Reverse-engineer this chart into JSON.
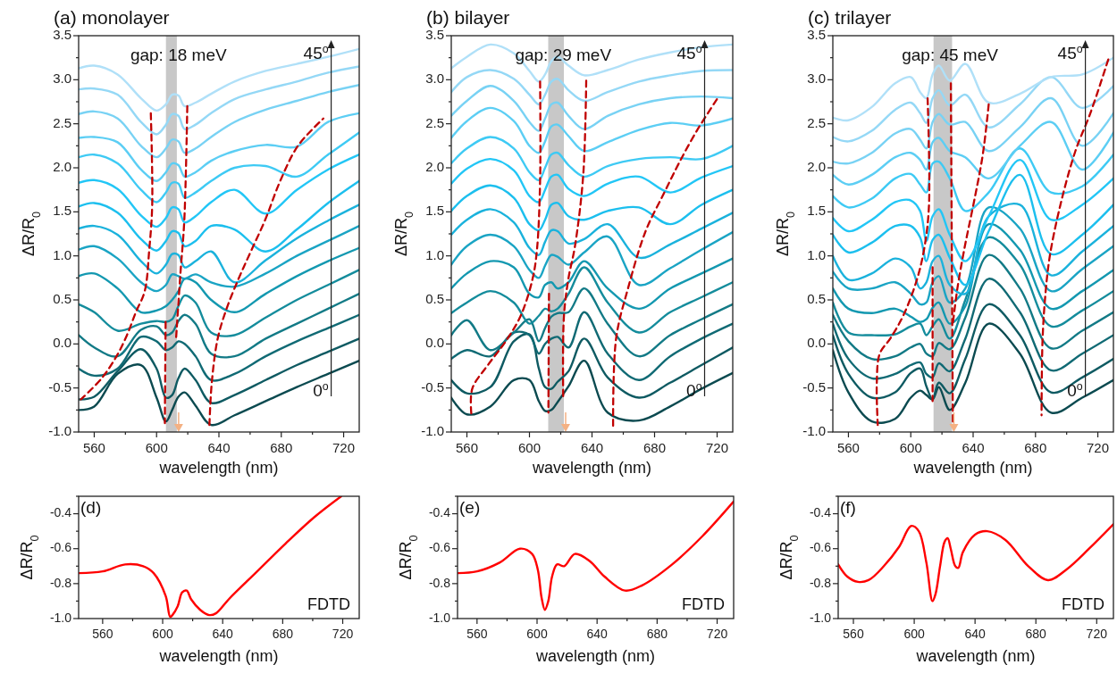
{
  "chart_data": [
    {
      "type": "line",
      "title": "(a) monolayer",
      "xlabel": "wavelength (nm)",
      "ylabel": "ΔR/R$_{0}$",
      "xlim": [
        550,
        730
      ],
      "ylim": [
        -1,
        3.5
      ],
      "line_style": "solid",
      "xticks": [
        560,
        {
          "value": 580,
          "label": null
        },
        600,
        {
          "value": 620,
          "label": null
        },
        640,
        {
          "value": 660,
          "label": null
        },
        680,
        {
          "value": 700,
          "label": null
        },
        720
      ],
      "yticks": [
        {
          "value": -1,
          "label": "-1.0"
        },
        {
          "value": -0.75,
          "label": null
        },
        {
          "value": -0.5,
          "label": "-0.5"
        },
        {
          "value": -0.25,
          "label": null
        },
        {
          "value": 0,
          "label": "0.0"
        },
        {
          "value": 0.25,
          "label": null
        },
        {
          "value": 0.5,
          "label": "0.5"
        },
        {
          "value": 0.75,
          "label": null
        },
        {
          "value": 1,
          "label": "1.0"
        },
        {
          "value": 1.25,
          "label": null
        },
        {
          "value": 1.5,
          "label": "1.5"
        },
        {
          "value": 1.75,
          "label": null
        },
        {
          "value": 2,
          "label": "2.0"
        },
        {
          "value": 2.25,
          "label": null
        },
        {
          "value": 2.5,
          "label": "2.5"
        },
        {
          "value": 2.75,
          "label": null
        },
        {
          "value": 3,
          "label": "3.0"
        },
        {
          "value": 3.25,
          "label": null
        },
        {
          "value": 3.5,
          "label": "3.5"
        }
      ],
      "x": [
        550,
        560,
        575,
        590,
        600,
        606,
        610,
        614,
        618,
        625,
        635,
        650,
        670,
        690,
        710,
        730
      ],
      "bands": [
        {
          "axis": "x",
          "from": 606,
          "to": 613,
          "color": "#c8c8c8"
        }
      ],
      "annotations": [
        "gap: 18 meV",
        "45$^{o}$",
        "0$^{o}$"
      ],
      "series": [
        {
          "color": "#0b4a50",
          "values": [
            -0.75,
            -0.71,
            -0.34,
            -0.24,
            -0.61,
            -0.88,
            -0.75,
            -0.6,
            -0.55,
            -0.7,
            -0.92,
            -0.81,
            -0.65,
            -0.49,
            -0.34,
            -0.19
          ]
        },
        {
          "color": "#0e5a62",
          "values": [
            -0.63,
            -0.6,
            -0.31,
            -0.06,
            -0.28,
            -0.61,
            -0.58,
            -0.39,
            -0.28,
            -0.41,
            -0.67,
            -0.58,
            -0.41,
            -0.24,
            -0.09,
            0.06
          ]
        },
        {
          "color": "#106a74",
          "values": [
            -0.28,
            -0.36,
            -0.28,
            0.08,
            0.03,
            -0.07,
            -0.04,
            0.03,
            0.0,
            -0.14,
            -0.41,
            -0.34,
            -0.14,
            0.03,
            0.18,
            0.33
          ]
        },
        {
          "color": "#127a86",
          "values": [
            0.1,
            -0.04,
            -0.14,
            0.16,
            0.2,
            0.1,
            0.13,
            0.26,
            0.33,
            0.23,
            -0.11,
            -0.14,
            0.06,
            0.23,
            0.4,
            0.57
          ]
        },
        {
          "color": "#148c9c",
          "values": [
            0.45,
            0.36,
            0.15,
            0.23,
            0.26,
            0.25,
            0.28,
            0.43,
            0.55,
            0.47,
            0.13,
            0.1,
            0.3,
            0.5,
            0.67,
            0.84
          ]
        },
        {
          "color": "#1398b0",
          "values": [
            0.77,
            0.8,
            0.63,
            0.36,
            0.38,
            0.43,
            0.5,
            0.6,
            0.74,
            0.7,
            0.5,
            0.36,
            0.57,
            0.77,
            0.94,
            1.09
          ]
        },
        {
          "color": "#1aa4c4",
          "values": [
            1.07,
            1.11,
            0.97,
            0.7,
            0.6,
            0.67,
            0.79,
            0.77,
            0.74,
            0.79,
            0.7,
            0.65,
            0.8,
            1.0,
            1.17,
            1.34
          ]
        },
        {
          "color": "#1ab2dc",
          "values": [
            1.31,
            1.34,
            1.24,
            0.94,
            0.8,
            0.9,
            1.02,
            1.01,
            0.87,
            0.94,
            1.05,
            0.7,
            0.95,
            1.2,
            1.4,
            1.58
          ]
        },
        {
          "color": "#1cbfee",
          "values": [
            1.56,
            1.6,
            1.49,
            1.19,
            1.06,
            1.17,
            1.28,
            1.26,
            1.11,
            1.17,
            1.34,
            1.3,
            1.05,
            1.3,
            1.6,
            1.85
          ]
        },
        {
          "color": "#22c6f6",
          "values": [
            1.83,
            1.86,
            1.76,
            1.46,
            1.33,
            1.43,
            1.55,
            1.53,
            1.38,
            1.45,
            1.61,
            1.75,
            1.48,
            1.75,
            1.98,
            2.15
          ]
        },
        {
          "color": "#3ecaf4",
          "values": [
            2.12,
            2.15,
            2.05,
            1.75,
            1.61,
            1.72,
            1.83,
            1.82,
            1.66,
            1.72,
            1.85,
            2.0,
            2.02,
            1.9,
            2.15,
            2.4
          ]
        },
        {
          "color": "#5ccef4",
          "values": [
            2.34,
            2.35,
            2.29,
            1.98,
            1.85,
            1.95,
            2.05,
            2.03,
            1.9,
            1.95,
            2.08,
            2.19,
            2.26,
            2.24,
            2.52,
            2.62
          ]
        },
        {
          "color": "#78d2f4",
          "values": [
            2.61,
            2.64,
            2.56,
            2.25,
            2.12,
            2.22,
            2.32,
            2.3,
            2.17,
            2.22,
            2.35,
            2.52,
            2.66,
            2.76,
            2.86,
            2.94
          ]
        },
        {
          "color": "#94d8f6",
          "values": [
            2.89,
            2.9,
            2.83,
            2.52,
            2.38,
            2.49,
            2.61,
            2.59,
            2.44,
            2.49,
            2.62,
            2.78,
            2.89,
            2.98,
            3.08,
            3.15
          ]
        },
        {
          "color": "#b0e0f8",
          "values": [
            3.13,
            3.16,
            3.06,
            2.79,
            2.65,
            2.72,
            2.83,
            2.82,
            2.7,
            2.74,
            2.84,
            2.98,
            3.1,
            3.18,
            3.26,
            3.35
          ]
        },
        {
          "type": "line",
          "color": "#c00000",
          "line_style": "dashed",
          "x": [
            596.3,
            597.2,
            595.3,
            592.4,
            586.7,
            581.0,
            574.3,
            564.8,
            551.4
          ],
          "values": [
            2.62,
            1.58,
            1.07,
            0.6,
            0.36,
            0.1,
            -0.14,
            -0.39,
            -0.63
          ]
        },
        {
          "type": "line",
          "color": "#c00000",
          "line_style": "dashed",
          "x": [
            605.8,
            605.3
          ],
          "values": [
            0.25,
            -0.9
          ]
        },
        {
          "type": "line",
          "color": "#c00000",
          "line_style": "dashed",
          "x": [
            619.7,
            617.8,
            615.3,
            612.5
          ],
          "values": [
            2.7,
            1.41,
            0.8,
            0.06
          ]
        },
        {
          "type": "line",
          "color": "#c00000",
          "line_style": "dashed",
          "x": [
            633.9,
            635.4,
            639.2,
            644.9,
            652.6,
            660.2,
            669.7,
            679.3,
            690.7,
            707.0
          ],
          "values": [
            -0.92,
            -0.44,
            0.06,
            0.4,
            0.74,
            1.04,
            1.41,
            1.85,
            2.25,
            2.56
          ]
        }
      ]
    },
    {
      "type": "line",
      "title": "(b) bilayer",
      "xlabel": "wavelength (nm)",
      "ylabel": "ΔR/R$_{0}$",
      "xlim": [
        550,
        730
      ],
      "ylim": [
        -1,
        3.5
      ],
      "line_style": "solid",
      "xticks": [
        560,
        {
          "value": 580,
          "label": null
        },
        600,
        {
          "value": 620,
          "label": null
        },
        640,
        {
          "value": 660,
          "label": null
        },
        680,
        {
          "value": 700,
          "label": null
        },
        720
      ],
      "yticks": [
        {
          "value": -1,
          "label": "-1.0"
        },
        {
          "value": -0.75,
          "label": null
        },
        {
          "value": -0.5,
          "label": "-0.5"
        },
        {
          "value": -0.25,
          "label": null
        },
        {
          "value": 0,
          "label": "0.0"
        },
        {
          "value": 0.25,
          "label": null
        },
        {
          "value": 0.5,
          "label": "0.5"
        },
        {
          "value": 0.75,
          "label": null
        },
        {
          "value": 1,
          "label": "1.0"
        },
        {
          "value": 1.25,
          "label": null
        },
        {
          "value": 1.5,
          "label": "1.5"
        },
        {
          "value": 1.75,
          "label": null
        },
        {
          "value": 2,
          "label": "2.0"
        },
        {
          "value": 2.25,
          "label": null
        },
        {
          "value": 2.5,
          "label": "2.5"
        },
        {
          "value": 2.75,
          "label": null
        },
        {
          "value": 3,
          "label": "3.0"
        },
        {
          "value": 3.25,
          "label": null
        },
        {
          "value": 3.5,
          "label": "3.5"
        }
      ],
      "x": [
        550,
        560,
        575,
        590,
        600,
        606,
        610,
        614,
        618,
        625,
        635,
        650,
        670,
        690,
        710,
        730
      ],
      "bands": [
        {
          "axis": "x",
          "from": 612,
          "to": 622,
          "color": "#c8c8c8"
        }
      ],
      "annotations": [
        "gap: 29 meV",
        "45$^{o}$",
        "0$^{o}$"
      ],
      "series": [
        {
          "color": "#0b4a50",
          "values": [
            -0.61,
            -0.8,
            -0.71,
            -0.41,
            -0.41,
            -0.65,
            -0.76,
            -0.75,
            -0.66,
            -0.48,
            -0.19,
            -0.78,
            -0.87,
            -0.71,
            -0.51,
            -0.33
          ]
        },
        {
          "color": "#0e5a62",
          "values": [
            -0.41,
            -0.56,
            -0.49,
            0.03,
            0.11,
            -0.28,
            -0.49,
            -0.51,
            -0.43,
            -0.31,
            0.06,
            -0.38,
            -0.61,
            -0.44,
            -0.24,
            -0.04
          ]
        },
        {
          "color": "#106a74",
          "values": [
            -0.17,
            -0.07,
            -0.14,
            0.13,
            0.1,
            -0.11,
            0.0,
            0.06,
            0.08,
            -0.04,
            0.36,
            -0.11,
            -0.41,
            -0.14,
            0.06,
            0.23
          ]
        },
        {
          "color": "#127a86",
          "values": [
            0.1,
            0.27,
            -0.07,
            0.13,
            0.28,
            0.03,
            0.18,
            0.31,
            0.35,
            0.36,
            0.63,
            0.23,
            -0.14,
            0.1,
            0.28,
            0.45
          ]
        },
        {
          "color": "#148c9c",
          "values": [
            0.35,
            0.47,
            0.6,
            0.47,
            0.23,
            0.32,
            0.4,
            0.37,
            0.4,
            0.57,
            0.87,
            0.47,
            0.13,
            0.36,
            0.53,
            0.7
          ]
        },
        {
          "color": "#1398b0",
          "values": [
            0.63,
            0.8,
            0.94,
            0.87,
            0.57,
            0.53,
            0.67,
            0.7,
            0.63,
            0.7,
            0.94,
            0.63,
            0.4,
            0.63,
            0.8,
            0.97
          ]
        },
        {
          "color": "#1aa4c4",
          "values": [
            0.9,
            1.11,
            1.24,
            1.11,
            0.84,
            0.75,
            0.89,
            1.01,
            0.99,
            0.9,
            1.04,
            1.22,
            0.67,
            0.86,
            1.07,
            1.27
          ]
        },
        {
          "color": "#1ab2dc",
          "values": [
            1.24,
            1.41,
            1.53,
            1.38,
            1.09,
            1.01,
            1.16,
            1.29,
            1.28,
            1.14,
            1.19,
            1.36,
            0.98,
            1.13,
            1.31,
            1.49
          ]
        },
        {
          "color": "#1cbfee",
          "values": [
            1.51,
            1.68,
            1.8,
            1.66,
            1.36,
            1.29,
            1.41,
            1.58,
            1.6,
            1.45,
            1.41,
            1.51,
            1.55,
            1.36,
            1.58,
            1.75
          ]
        },
        {
          "color": "#22c6f6",
          "values": [
            1.82,
            1.99,
            2.1,
            1.97,
            1.68,
            1.61,
            1.75,
            1.9,
            1.92,
            1.76,
            1.68,
            1.82,
            1.9,
            1.72,
            1.89,
            2.02
          ]
        },
        {
          "color": "#3ecaf4",
          "values": [
            2.05,
            2.22,
            2.35,
            2.22,
            1.95,
            1.86,
            2.0,
            2.15,
            2.17,
            2.03,
            1.9,
            2.02,
            2.1,
            2.12,
            2.1,
            2.25
          ]
        },
        {
          "color": "#5ccef4",
          "values": [
            2.34,
            2.53,
            2.68,
            2.53,
            2.25,
            2.17,
            2.3,
            2.47,
            2.49,
            2.36,
            2.19,
            2.29,
            2.43,
            2.51,
            2.48,
            2.56
          ]
        },
        {
          "color": "#78d2f4",
          "values": [
            2.59,
            2.76,
            2.93,
            2.76,
            2.52,
            2.42,
            2.56,
            2.72,
            2.74,
            2.59,
            2.44,
            2.59,
            2.72,
            2.79,
            2.81,
            2.79
          ]
        },
        {
          "color": "#94d8f6",
          "values": [
            2.86,
            3.03,
            3.11,
            3.01,
            2.83,
            2.72,
            2.83,
            2.98,
            3.01,
            2.88,
            2.76,
            2.86,
            2.98,
            3.05,
            3.1,
            3.11
          ]
        },
        {
          "color": "#b0e0f8",
          "values": [
            3.13,
            3.26,
            3.4,
            3.3,
            3.1,
            2.98,
            3.06,
            3.21,
            3.26,
            3.16,
            3.05,
            3.11,
            3.23,
            3.31,
            3.37,
            3.4
          ]
        },
        {
          "type": "line",
          "color": "#c00000",
          "line_style": "dashed",
          "x": [
            606.8,
            606.8,
            604.8,
            602.0,
            594.4,
            584.8,
            573.4,
            563.4,
            562.9
          ],
          "values": [
            2.98,
            1.85,
            1.07,
            0.74,
            0.32,
            0.03,
            -0.24,
            -0.51,
            -0.81
          ]
        },
        {
          "type": "line",
          "color": "#c00000",
          "line_style": "dashed",
          "x": [
            612.5,
            612.1
          ],
          "values": [
            0.57,
            -0.78
          ]
        },
        {
          "type": "line",
          "color": "#c00000",
          "line_style": "dashed",
          "x": [
            636.3,
            634.4,
            629.1,
            624.9,
            622.0,
            621.6
          ],
          "values": [
            2.99,
            1.92,
            1.11,
            0.74,
            0.3,
            -0.63
          ]
        },
        {
          "type": "line",
          "color": "#c00000",
          "line_style": "dashed",
          "x": [
            653.5,
            655.4,
            663.0,
            674.5,
            686.0,
            695.5,
            707.0,
            720.3
          ],
          "values": [
            -0.93,
            0.06,
            0.63,
            1.29,
            1.71,
            2.05,
            2.42,
            2.79
          ]
        }
      ]
    },
    {
      "type": "line",
      "title": "(c) trilayer",
      "xlabel": "wavelength (nm)",
      "ylabel": "ΔR/R$_{0}$",
      "xlim": [
        550,
        730
      ],
      "ylim": [
        -1,
        3.5
      ],
      "line_style": "solid",
      "xticks": [
        560,
        {
          "value": 580,
          "label": null
        },
        600,
        {
          "value": 620,
          "label": null
        },
        640,
        {
          "value": 660,
          "label": null
        },
        680,
        {
          "value": 700,
          "label": null
        },
        720
      ],
      "yticks": [
        {
          "value": -1,
          "label": "-1.0"
        },
        {
          "value": -0.75,
          "label": null
        },
        {
          "value": -0.5,
          "label": "-0.5"
        },
        {
          "value": -0.25,
          "label": null
        },
        {
          "value": 0,
          "label": "0.0"
        },
        {
          "value": 0.25,
          "label": null
        },
        {
          "value": 0.5,
          "label": "0.5"
        },
        {
          "value": 0.75,
          "label": null
        },
        {
          "value": 1,
          "label": "1.0"
        },
        {
          "value": 1.25,
          "label": null
        },
        {
          "value": 1.5,
          "label": "1.5"
        },
        {
          "value": 1.75,
          "label": null
        },
        {
          "value": 2,
          "label": "2.0"
        },
        {
          "value": 2.25,
          "label": null
        },
        {
          "value": 2.5,
          "label": "2.5"
        },
        {
          "value": 2.75,
          "label": null
        },
        {
          "value": 3,
          "label": "3.0"
        },
        {
          "value": 3.25,
          "label": null
        },
        {
          "value": 3.5,
          "label": "3.5"
        }
      ],
      "x": [
        550,
        560,
        575,
        590,
        600,
        606,
        610,
        614,
        618,
        625,
        635,
        650,
        670,
        690,
        710,
        730
      ],
      "bands": [
        {
          "axis": "x",
          "from": 614.6,
          "to": 626.5,
          "color": "#c8c8c8"
        }
      ],
      "annotations": [
        "gap: 45 meV",
        "45$^{o}$",
        "0$^{o}$"
      ],
      "series": [
        {
          "color": "#0b4a50",
          "values": [
            -0.07,
            -0.55,
            -0.88,
            -0.85,
            -0.61,
            -0.53,
            -0.58,
            -0.63,
            -0.49,
            -0.75,
            -0.44,
            0.23,
            -0.11,
            -0.78,
            -0.61,
            -0.41
          ]
        },
        {
          "color": "#0e5a62",
          "values": [
            0.1,
            -0.34,
            -0.61,
            -0.55,
            -0.33,
            -0.28,
            -0.48,
            -0.63,
            -0.44,
            -0.56,
            -0.17,
            0.45,
            0.1,
            -0.55,
            -0.38,
            -0.17
          ]
        },
        {
          "color": "#106a74",
          "values": [
            0.23,
            -0.17,
            -0.39,
            -0.34,
            -0.24,
            -0.21,
            -0.34,
            -0.38,
            -0.22,
            -0.31,
            0.06,
            0.74,
            0.36,
            -0.3,
            -0.11,
            0.1
          ]
        },
        {
          "color": "#127a86",
          "values": [
            0.33,
            0.03,
            -0.17,
            -0.14,
            -0.04,
            0.0,
            -0.11,
            -0.14,
            0.01,
            -0.06,
            0.3,
            1.01,
            0.63,
            -0.05,
            0.15,
            0.36
          ]
        },
        {
          "color": "#148c9c",
          "values": [
            0.47,
            0.13,
            0.1,
            0.11,
            0.2,
            0.23,
            0.1,
            0.2,
            0.28,
            0.06,
            0.5,
            1.21,
            0.9,
            0.2,
            0.38,
            0.6
          ]
        },
        {
          "color": "#1398b0",
          "values": [
            0.63,
            0.4,
            0.35,
            0.4,
            0.31,
            0.25,
            0.28,
            0.41,
            0.47,
            0.23,
            0.43,
            1.36,
            1.07,
            0.4,
            0.6,
            0.84
          ]
        },
        {
          "color": "#1aa4c4",
          "values": [
            0.82,
            0.63,
            0.63,
            0.7,
            0.57,
            0.45,
            0.47,
            0.7,
            0.77,
            0.47,
            0.63,
            1.55,
            1.31,
            0.6,
            0.85,
            1.11
          ]
        },
        {
          "color": "#1ab2dc",
          "values": [
            1.0,
            0.73,
            0.8,
            0.97,
            0.87,
            0.63,
            0.7,
            0.94,
            1.0,
            0.67,
            0.57,
            1.45,
            1.58,
            0.78,
            1.05,
            1.34
          ]
        },
        {
          "color": "#1cbfee",
          "values": [
            1.24,
            1.04,
            1.15,
            1.34,
            1.34,
            1.21,
            0.94,
            1.18,
            1.24,
            0.98,
            0.67,
            1.28,
            1.92,
            1.02,
            1.24,
            1.58
          ]
        },
        {
          "color": "#22c6f6",
          "values": [
            1.43,
            1.28,
            1.41,
            1.61,
            1.63,
            1.51,
            1.17,
            1.45,
            1.53,
            1.24,
            0.94,
            1.45,
            2.09,
            1.41,
            1.58,
            1.88
          ]
        },
        {
          "color": "#3ecaf4",
          "values": [
            1.68,
            1.55,
            1.65,
            1.88,
            1.93,
            1.81,
            1.72,
            2.05,
            2.07,
            1.88,
            1.51,
            1.72,
            2.22,
            1.72,
            1.79,
            2.15
          ]
        },
        {
          "color": "#5ccef4",
          "values": [
            1.92,
            1.81,
            1.92,
            2.12,
            2.17,
            2.09,
            1.98,
            2.29,
            2.34,
            2.19,
            2.12,
            1.88,
            2.25,
            2.52,
            1.98,
            2.4
          ]
        },
        {
          "color": "#78d2f4",
          "values": [
            2.07,
            2.05,
            2.17,
            2.39,
            2.44,
            2.32,
            2.22,
            2.52,
            2.61,
            2.49,
            2.52,
            2.19,
            2.46,
            2.79,
            2.25,
            2.62
          ]
        },
        {
          "color": "#94d8f6",
          "values": [
            2.35,
            2.3,
            2.42,
            2.66,
            2.74,
            2.62,
            2.51,
            2.79,
            2.88,
            2.71,
            2.83,
            2.46,
            2.72,
            3.03,
            2.68,
            2.93
          ]
        },
        {
          "color": "#b0e0f8",
          "values": [
            2.57,
            2.54,
            2.69,
            2.96,
            3.03,
            2.86,
            2.79,
            3.06,
            3.16,
            2.99,
            3.18,
            2.74,
            2.84,
            3.03,
            3.06,
            3.25
          ]
        },
        {
          "type": "line",
          "color": "#c00000",
          "line_style": "dashed",
          "x": [
            610.8,
            611.7,
            608.9,
            604.1,
            595.4,
            586.8,
            580.1,
            578.2,
            578.8
          ],
          "values": [
            2.79,
            1.58,
            1.11,
            0.74,
            0.33,
            0.06,
            -0.11,
            -0.44,
            -0.92
          ]
        },
        {
          "type": "line",
          "color": "#c00000",
          "line_style": "dashed",
          "x": [
            614.0,
            614.0
          ],
          "values": [
            0.87,
            -0.65
          ]
        },
        {
          "type": "line",
          "color": "#c00000",
          "line_style": "dashed",
          "x": [
            625.7,
            627.0
          ],
          "values": [
            2.96,
            -0.91
          ]
        },
        {
          "type": "line",
          "color": "#c00000",
          "line_style": "dashed",
          "x": [
            650.0,
            646.2,
            640.5,
            634.7,
            629.9,
            627.0
          ],
          "values": [
            2.72,
            2.15,
            1.61,
            1.11,
            0.63,
            0.23
          ]
        },
        {
          "type": "line",
          "color": "#c00000",
          "line_style": "dashed",
          "x": [
            726.7,
            715.2,
            705.6,
            696.0,
            689.3,
            686.4,
            684.5,
            683.9
          ],
          "values": [
            3.23,
            2.62,
            2.19,
            1.58,
            1.01,
            0.57,
            0.03,
            -0.81
          ]
        }
      ]
    },
    {
      "type": "line",
      "title": "(d)",
      "xlabel": "wavelength (nm)",
      "ylabel": "ΔR/R$_{0}$",
      "xlim": [
        544,
        731
      ],
      "ylim": [
        -1,
        -0.3
      ],
      "line_style": "solid",
      "xticks": [
        560,
        {
          "value": 580,
          "label": null
        },
        600,
        {
          "value": 620,
          "label": null
        },
        640,
        {
          "value": 660,
          "label": null
        },
        680,
        {
          "value": 700,
          "label": null
        },
        720
      ],
      "yticks": [
        {
          "value": -1,
          "label": "-1.0"
        },
        {
          "value": -0.9,
          "label": null
        },
        {
          "value": -0.8,
          "label": "-0.8"
        },
        {
          "value": -0.7,
          "label": null
        },
        {
          "value": -0.6,
          "label": "-0.6"
        },
        {
          "value": -0.5,
          "label": null
        },
        {
          "value": -0.4,
          "label": "-0.4"
        },
        {
          "value": -0.3,
          "label": null
        }
      ],
      "annotations": [
        "FDTD"
      ],
      "series": [
        {
          "color": "#ff0000",
          "x": [
            544,
            560,
            575,
            587,
            594,
            602,
            605,
            606.5,
            610,
            613,
            616,
            619,
            625,
            631,
            635.5,
            644,
            663,
            682,
            701,
            719
          ],
          "values": [
            -0.74,
            -0.73,
            -0.69,
            -0.7,
            -0.74,
            -0.87,
            -0.99,
            -0.98,
            -0.93,
            -0.85,
            -0.84,
            -0.89,
            -0.95,
            -0.98,
            -0.97,
            -0.89,
            -0.73,
            -0.57,
            -0.42,
            -0.3
          ]
        }
      ]
    },
    {
      "type": "line",
      "title": "(e)",
      "xlabel": "wavelength (nm)",
      "ylabel": "ΔR/R$_{0}$",
      "xlim": [
        547,
        731
      ],
      "ylim": [
        -1,
        -0.3
      ],
      "line_style": "solid",
      "xticks": [
        560,
        {
          "value": 580,
          "label": null
        },
        600,
        {
          "value": 620,
          "label": null
        },
        640,
        {
          "value": 660,
          "label": null
        },
        680,
        {
          "value": 700,
          "label": null
        },
        720
      ],
      "yticks": [
        {
          "value": -1,
          "label": "-1.0"
        },
        {
          "value": -0.9,
          "label": null
        },
        {
          "value": -0.8,
          "label": "-0.8"
        },
        {
          "value": -0.7,
          "label": null
        },
        {
          "value": -0.6,
          "label": "-0.6"
        },
        {
          "value": -0.5,
          "label": null
        },
        {
          "value": -0.4,
          "label": "-0.4"
        },
        {
          "value": -0.3,
          "label": null
        }
      ],
      "annotations": [
        "FDTD"
      ],
      "series": [
        {
          "color": "#ff0000",
          "x": [
            547,
            560,
            575,
            588.6,
            596.7,
            600.5,
            603,
            605.2,
            607.5,
            610,
            613.3,
            618.1,
            625.2,
            635,
            645,
            658.6,
            670,
            690,
            710,
            731
          ],
          "values": [
            -0.74,
            -0.73,
            -0.68,
            -0.6,
            -0.63,
            -0.72,
            -0.88,
            -0.95,
            -0.9,
            -0.76,
            -0.69,
            -0.7,
            -0.63,
            -0.67,
            -0.76,
            -0.84,
            -0.81,
            -0.69,
            -0.53,
            -0.33
          ]
        }
      ]
    },
    {
      "type": "line",
      "title": "(f)",
      "xlabel": "wavelength (nm)",
      "ylabel": "ΔR/R$_{0}$",
      "xlim": [
        550,
        731
      ],
      "ylim": [
        -1,
        -0.3
      ],
      "line_style": "solid",
      "xticks": [
        560,
        {
          "value": 580,
          "label": null
        },
        600,
        {
          "value": 620,
          "label": null
        },
        640,
        {
          "value": 660,
          "label": null
        },
        680,
        {
          "value": 700,
          "label": null
        },
        720
      ],
      "yticks": [
        {
          "value": -1,
          "label": "-1.0"
        },
        {
          "value": -0.9,
          "label": null
        },
        {
          "value": -0.8,
          "label": "-0.8"
        },
        {
          "value": -0.7,
          "label": null
        },
        {
          "value": -0.6,
          "label": "-0.6"
        },
        {
          "value": -0.5,
          "label": null
        },
        {
          "value": -0.4,
          "label": "-0.4"
        },
        {
          "value": -0.3,
          "label": null
        }
      ],
      "annotations": [
        "FDTD"
      ],
      "series": [
        {
          "color": "#ff0000",
          "x": [
            550,
            556,
            563,
            570,
            580,
            590,
            598,
            603,
            608,
            612,
            614,
            617,
            620,
            622,
            624,
            627,
            629,
            632,
            640,
            648,
            660,
            675,
            688,
            700,
            715,
            731
          ],
          "values": [
            -0.69,
            -0.76,
            -0.79,
            -0.78,
            -0.7,
            -0.59,
            -0.47,
            -0.5,
            -0.68,
            -0.9,
            -0.86,
            -0.7,
            -0.56,
            -0.54,
            -0.6,
            -0.7,
            -0.71,
            -0.62,
            -0.52,
            -0.5,
            -0.55,
            -0.7,
            -0.78,
            -0.72,
            -0.6,
            -0.46
          ]
        }
      ]
    }
  ]
}
